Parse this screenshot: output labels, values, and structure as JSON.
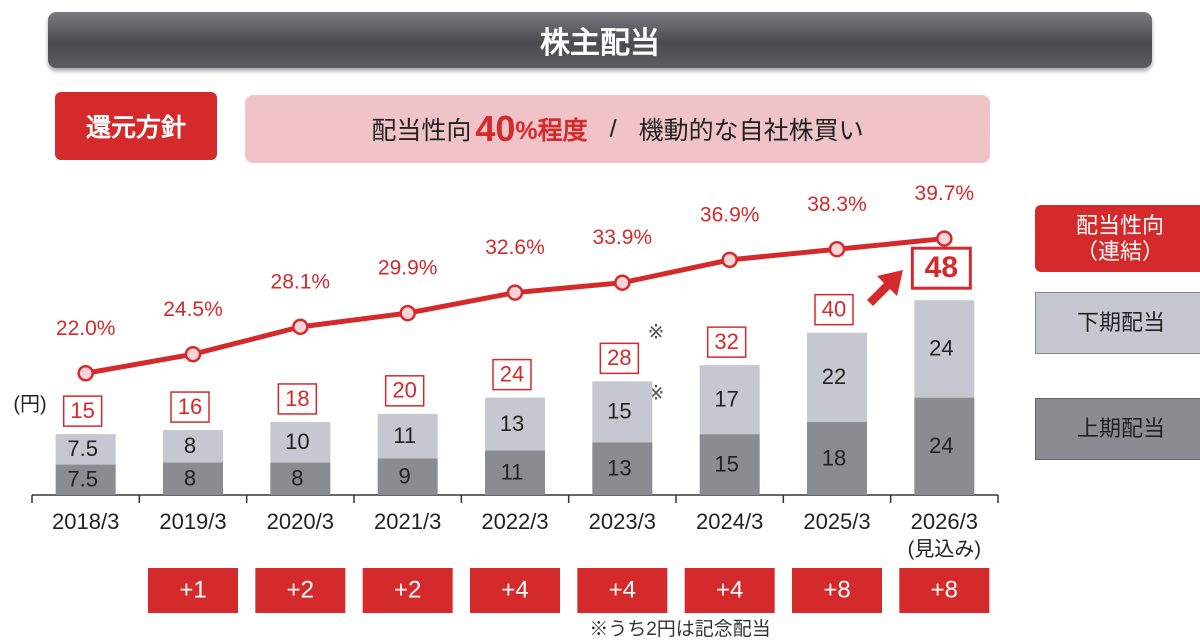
{
  "header": {
    "title": "株主配当"
  },
  "policy": {
    "label": "還元方針",
    "payout_text": "配当性向",
    "payout_value": "40",
    "payout_suffix": "%程度",
    "separator": "/",
    "buyback_text": "機動的な自社株買い"
  },
  "chart_data": {
    "type": "bar",
    "stacked": true,
    "unit": "(円)",
    "categories": [
      "2018/3",
      "2019/3",
      "2020/3",
      "2021/3",
      "2022/3",
      "2023/3",
      "2024/3",
      "2025/3",
      "2026/3"
    ],
    "category_notes": [
      null,
      null,
      null,
      null,
      null,
      null,
      null,
      null,
      "(見込み)"
    ],
    "series": [
      {
        "name": "上期配当",
        "color": "#8b8c92",
        "values": [
          7.5,
          8,
          8,
          9,
          11,
          13,
          15,
          18,
          24
        ]
      },
      {
        "name": "下期配当",
        "color": "#c6c8d1",
        "values": [
          7.5,
          8,
          10,
          11,
          13,
          15,
          17,
          22,
          24
        ]
      },
      {
        "name": "配当性向（連結）",
        "type": "line",
        "axis": "y2",
        "color": "#d42a2b",
        "values": [
          22.0,
          24.5,
          28.1,
          29.9,
          32.6,
          33.9,
          36.9,
          38.3,
          39.7
        ],
        "value_labels": [
          "22.0%",
          "24.5%",
          "28.1%",
          "29.9%",
          "32.6%",
          "33.9%",
          "36.9%",
          "38.3%",
          "39.7%"
        ]
      }
    ],
    "totals": [
      15,
      16,
      18,
      20,
      24,
      28,
      32,
      40,
      48
    ],
    "increase": {
      "values": [
        null,
        1,
        2,
        2,
        4,
        4,
        4,
        8,
        8
      ],
      "value_labels": [
        null,
        "+1",
        "+2",
        "+2",
        "+4",
        "+4",
        "+4",
        "+8",
        "+8"
      ]
    },
    "ylim": [
      0,
      120
    ],
    "y2lim": [
      6,
      70
    ],
    "legend": "right",
    "note_mark": "※",
    "note": "※うち2円は記念配当"
  }
}
